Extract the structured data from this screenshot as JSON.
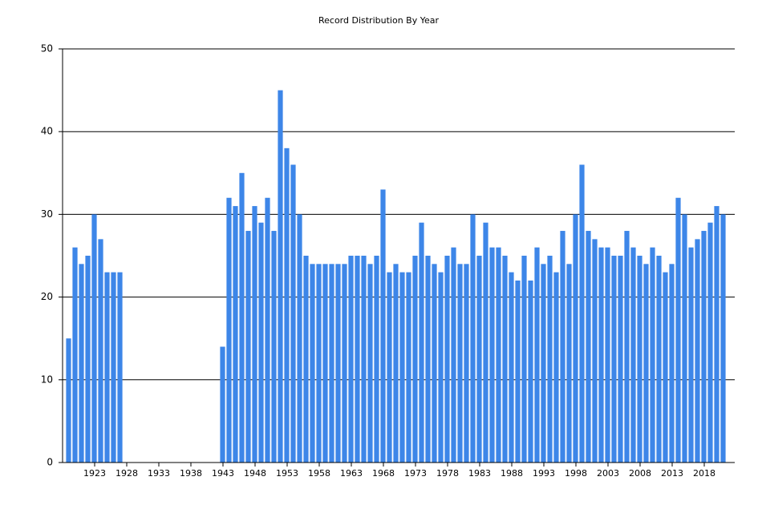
{
  "chart_data": {
    "type": "bar",
    "title": "Record Distribution By Year",
    "x": [
      1919,
      1920,
      1921,
      1922,
      1923,
      1924,
      1925,
      1926,
      1927,
      1943,
      1944,
      1945,
      1946,
      1947,
      1948,
      1949,
      1950,
      1951,
      1952,
      1953,
      1954,
      1955,
      1956,
      1957,
      1958,
      1959,
      1960,
      1961,
      1962,
      1963,
      1964,
      1965,
      1966,
      1967,
      1968,
      1969,
      1970,
      1971,
      1972,
      1973,
      1974,
      1975,
      1976,
      1977,
      1978,
      1979,
      1980,
      1981,
      1982,
      1983,
      1984,
      1985,
      1986,
      1987,
      1988,
      1989,
      1990,
      1991,
      1992,
      1993,
      1994,
      1995,
      1996,
      1997,
      1998,
      1999,
      2000,
      2001,
      2002,
      2003,
      2004,
      2005,
      2006,
      2007,
      2008,
      2009,
      2010,
      2011,
      2012,
      2013,
      2014,
      2015,
      2016,
      2017,
      2018,
      2019,
      2020,
      2021
    ],
    "values": [
      15,
      26,
      24,
      25,
      30,
      27,
      23,
      23,
      23,
      14,
      32,
      31,
      35,
      28,
      31,
      29,
      32,
      28,
      45,
      38,
      36,
      30,
      25,
      24,
      24,
      24,
      24,
      24,
      24,
      25,
      25,
      25,
      24,
      25,
      33,
      23,
      24,
      23,
      23,
      25,
      29,
      25,
      24,
      23,
      25,
      26,
      24,
      24,
      30,
      25,
      29,
      26,
      26,
      25,
      23,
      22,
      25,
      22,
      26,
      24,
      25,
      23,
      28,
      24,
      30,
      36,
      28,
      27,
      26,
      26,
      25,
      25,
      28,
      26,
      25,
      24,
      26,
      25,
      23,
      24,
      32,
      30,
      26,
      27,
      28,
      29,
      31,
      30
    ],
    "color": "#3d86e8",
    "xlim": [
      1918,
      2022.75
    ],
    "xticks": [
      1923,
      1928,
      1933,
      1938,
      1943,
      1948,
      1953,
      1958,
      1963,
      1968,
      1973,
      1978,
      1983,
      1988,
      1993,
      1998,
      2003,
      2008,
      2013,
      2018
    ],
    "ylim": [
      0,
      50
    ],
    "yticks": [
      0,
      10,
      20,
      30,
      40,
      50
    ],
    "grid": true
  }
}
